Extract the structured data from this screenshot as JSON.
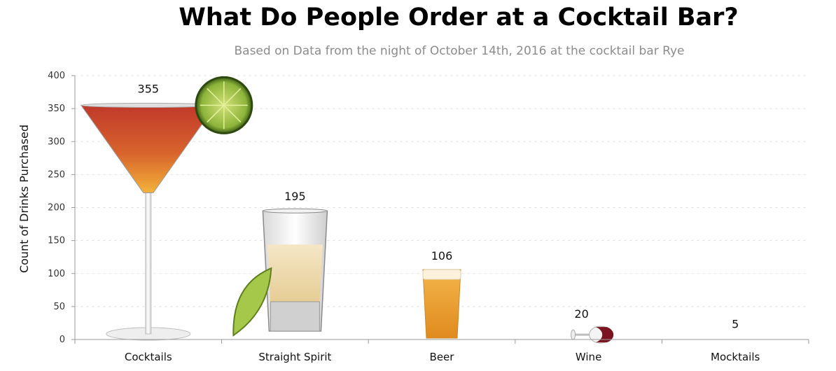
{
  "chart_data": {
    "type": "bar",
    "title": "What Do People Order at a Cocktail Bar?",
    "subtitle": "Based on Data from the night of October 14th, 2016 at the cocktail bar Rye",
    "xlabel": "",
    "ylabel": "Count of Drinks Purchased",
    "categories": [
      "Cocktails",
      "Straight Spirit",
      "Beer",
      "Wine",
      "Mocktails"
    ],
    "values": [
      355,
      195,
      106,
      20,
      5
    ],
    "value_labels": [
      "355",
      "195",
      "106",
      "20",
      "5"
    ],
    "ylim": [
      0,
      400
    ],
    "yticks": [
      0,
      50,
      100,
      150,
      200,
      250,
      300,
      350,
      400
    ],
    "ytick_labels": [
      "0",
      "50",
      "100",
      "150",
      "200",
      "250",
      "300",
      "350",
      "400"
    ],
    "grid": true,
    "bar_icons": [
      "martini-glass-icon",
      "shot-glass-icon",
      "beer-glass-icon",
      "wine-glass-icon",
      "none"
    ],
    "colors": {
      "cocktail_top": "#c0392b",
      "cocktail_bottom": "#f3b23b",
      "lime": "#8db43a",
      "spirit": "#f1dfb8",
      "beer": "#f0a030",
      "wine": "#7a1420",
      "grid": "#e5e5e5",
      "subtitle": "#8c8c8c"
    }
  }
}
